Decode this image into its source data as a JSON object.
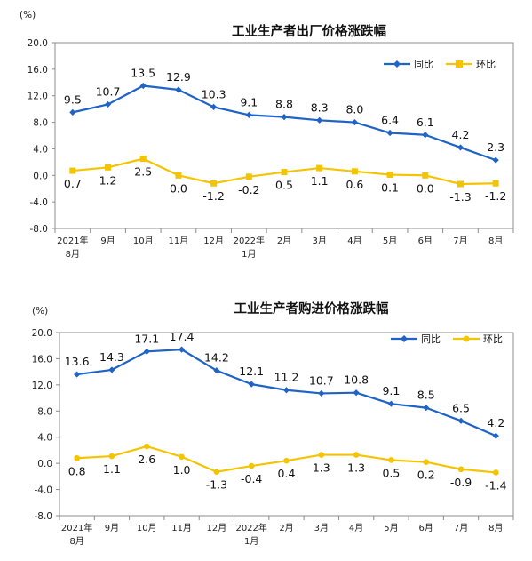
{
  "colors": {
    "yoy": "#1f63c6",
    "mom": "#f5c400",
    "frame": "#8c8c8c"
  },
  "chart_data": [
    {
      "type": "line",
      "title": "工业生产者出厂价格涨跌幅",
      "unit": "(%)",
      "ylim": [
        -8.0,
        20.0
      ],
      "yticks": [
        "20.0",
        "16.0",
        "12.0",
        "8.0",
        "4.0",
        "0.0",
        "-4.0",
        "-8.0"
      ],
      "categories": [
        [
          "2021年",
          "8月"
        ],
        [
          "9月"
        ],
        [
          "10月"
        ],
        [
          "11月"
        ],
        [
          "12月"
        ],
        [
          "2022年",
          "1月"
        ],
        [
          "2月"
        ],
        [
          "3月"
        ],
        [
          "4月"
        ],
        [
          "5月"
        ],
        [
          "6月"
        ],
        [
          "7月"
        ],
        [
          "8月"
        ]
      ],
      "series": [
        {
          "name": "同比",
          "color": "#1f63c6",
          "marker": "diamond",
          "values": [
            9.5,
            10.7,
            13.5,
            12.9,
            10.3,
            9.1,
            8.8,
            8.3,
            8.0,
            6.4,
            6.1,
            4.2,
            2.3
          ],
          "labels": [
            "9.5",
            "10.7",
            "13.5",
            "12.9",
            "10.3",
            "9.1",
            "8.8",
            "8.3",
            "8.0",
            "6.4",
            "6.1",
            "4.2",
            "2.3"
          ]
        },
        {
          "name": "环比",
          "color": "#f5c400",
          "marker": "square",
          "values": [
            0.7,
            1.2,
            2.5,
            0.0,
            -1.2,
            -0.2,
            0.5,
            1.1,
            0.6,
            0.1,
            0.0,
            -1.3,
            -1.2
          ],
          "labels": [
            "0.7",
            "1.2",
            "2.5",
            "0.0",
            "-1.2",
            "-0.2",
            "0.5",
            "1.1",
            "0.6",
            "0.1",
            "0.0",
            "-1.3",
            "-1.2"
          ]
        }
      ],
      "legend": "top-right",
      "grid": false
    },
    {
      "type": "line",
      "title": "工业生产者购进价格涨跌幅",
      "unit": "(%)",
      "ylim": [
        -8.0,
        20.0
      ],
      "yticks": [
        "20.0",
        "16.0",
        "12.0",
        "8.0",
        "4.0",
        "0.0",
        "-4.0",
        "-8.0"
      ],
      "categories": [
        [
          "2021年",
          "8月"
        ],
        [
          "9月"
        ],
        [
          "10月"
        ],
        [
          "11月"
        ],
        [
          "12月"
        ],
        [
          "2022年",
          "1月"
        ],
        [
          "2月"
        ],
        [
          "3月"
        ],
        [
          "4月"
        ],
        [
          "5月"
        ],
        [
          "6月"
        ],
        [
          "7月"
        ],
        [
          "8月"
        ]
      ],
      "series": [
        {
          "name": "同比",
          "color": "#1f63c6",
          "marker": "diamond",
          "values": [
            13.6,
            14.3,
            17.1,
            17.4,
            14.2,
            12.1,
            11.2,
            10.7,
            10.8,
            9.1,
            8.5,
            6.5,
            4.2
          ],
          "labels": [
            "13.6",
            "14.3",
            "17.1",
            "17.4",
            "14.2",
            "12.1",
            "11.2",
            "10.7",
            "10.8",
            "9.1",
            "8.5",
            "6.5",
            "4.2"
          ]
        },
        {
          "name": "环比",
          "color": "#f5c400",
          "marker": "circle",
          "values": [
            0.8,
            1.1,
            2.6,
            1.0,
            -1.3,
            -0.4,
            0.4,
            1.3,
            1.3,
            0.5,
            0.2,
            -0.9,
            -1.4
          ],
          "labels": [
            "0.8",
            "1.1",
            "2.6",
            "1.0",
            "-1.3",
            "-0.4",
            "0.4",
            "1.3",
            "1.3",
            "0.5",
            "0.2",
            "-0.9",
            "-1.4"
          ]
        }
      ],
      "legend": "top-right",
      "grid": false
    }
  ]
}
